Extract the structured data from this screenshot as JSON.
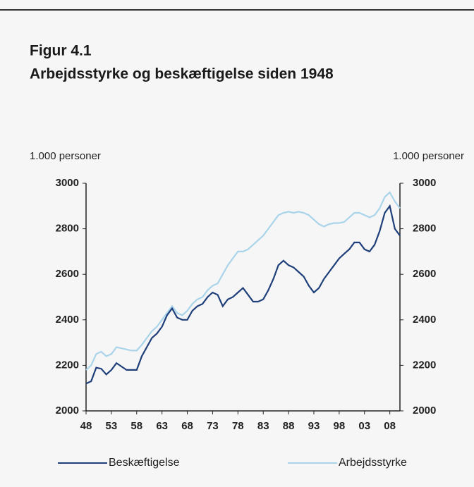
{
  "chart_data": {
    "type": "line",
    "title": "Figur 4.1",
    "subtitle": "Arbejdsstyrke og beskæftigelse siden 1948",
    "ylabel": "1.000 personer",
    "y2label": "1.000 personer",
    "x": [
      1948,
      1949,
      1950,
      1951,
      1952,
      1953,
      1954,
      1955,
      1956,
      1957,
      1958,
      1959,
      1960,
      1961,
      1962,
      1963,
      1964,
      1965,
      1966,
      1967,
      1968,
      1969,
      1970,
      1971,
      1972,
      1973,
      1974,
      1975,
      1976,
      1977,
      1978,
      1979,
      1980,
      1981,
      1982,
      1983,
      1984,
      1985,
      1986,
      1987,
      1988,
      1989,
      1990,
      1991,
      1992,
      1993,
      1994,
      1995,
      1996,
      1997,
      1998,
      1999,
      2000,
      2001,
      2002,
      2003,
      2004,
      2005,
      2006,
      2007,
      2008,
      2009,
      2010
    ],
    "series": [
      {
        "name": "Beskæftigelse",
        "color": "#1f3f7a",
        "values": [
          2120,
          2130,
          2190,
          2185,
          2160,
          2180,
          2210,
          2195,
          2180,
          2180,
          2180,
          2240,
          2280,
          2320,
          2340,
          2370,
          2420,
          2450,
          2410,
          2400,
          2400,
          2440,
          2460,
          2470,
          2500,
          2520,
          2510,
          2460,
          2490,
          2500,
          2520,
          2540,
          2510,
          2480,
          2480,
          2490,
          2530,
          2580,
          2640,
          2660,
          2640,
          2630,
          2610,
          2590,
          2550,
          2520,
          2540,
          2580,
          2610,
          2640,
          2670,
          2690,
          2710,
          2740,
          2740,
          2710,
          2700,
          2730,
          2790,
          2870,
          2900,
          2800,
          2770
        ]
      },
      {
        "name": "Arbejdsstyrke",
        "color": "#a9d4ea",
        "values": [
          2180,
          2200,
          2250,
          2260,
          2240,
          2250,
          2280,
          2275,
          2270,
          2265,
          2265,
          2290,
          2320,
          2350,
          2370,
          2400,
          2430,
          2460,
          2430,
          2420,
          2440,
          2470,
          2490,
          2500,
          2530,
          2550,
          2560,
          2600,
          2640,
          2670,
          2700,
          2700,
          2710,
          2730,
          2750,
          2770,
          2800,
          2830,
          2860,
          2870,
          2875,
          2870,
          2875,
          2870,
          2860,
          2840,
          2820,
          2810,
          2820,
          2825,
          2825,
          2830,
          2850,
          2870,
          2870,
          2860,
          2850,
          2860,
          2890,
          2940,
          2960,
          2920,
          2890
        ]
      }
    ],
    "xlim": [
      1948,
      2010
    ],
    "xticks": [
      {
        "value": 1948,
        "label": "48"
      },
      {
        "value": 1953,
        "label": "53"
      },
      {
        "value": 1958,
        "label": "58"
      },
      {
        "value": 1963,
        "label": "63"
      },
      {
        "value": 1968,
        "label": "68"
      },
      {
        "value": 1973,
        "label": "73"
      },
      {
        "value": 1978,
        "label": "78"
      },
      {
        "value": 1983,
        "label": "83"
      },
      {
        "value": 1988,
        "label": "88"
      },
      {
        "value": 1993,
        "label": "93"
      },
      {
        "value": 1998,
        "label": "98"
      },
      {
        "value": 2003,
        "label": "03"
      },
      {
        "value": 2008,
        "label": "08"
      }
    ],
    "ylim": [
      2000,
      3000
    ],
    "yticks": [
      2000,
      2200,
      2400,
      2600,
      2800,
      3000
    ],
    "y2lim": [
      2000,
      3000
    ],
    "y2ticks": [
      2000,
      2200,
      2400,
      2600,
      2800,
      3000
    ],
    "legend": "bottom"
  }
}
